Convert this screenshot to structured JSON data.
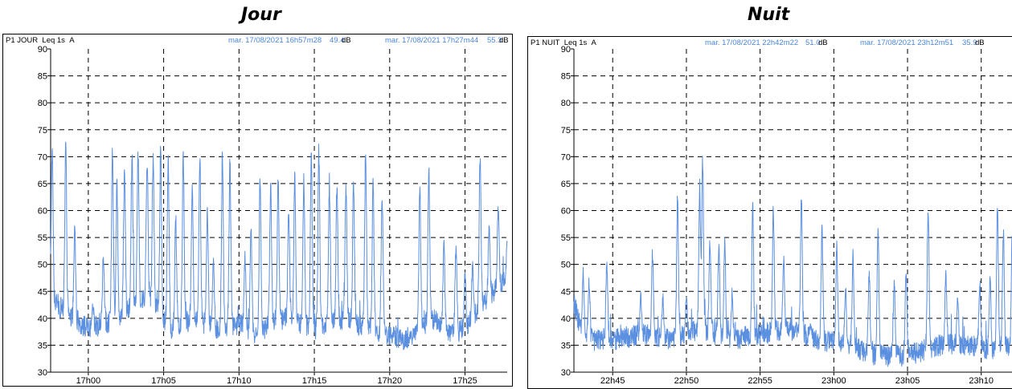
{
  "titles": {
    "jour": "Jour",
    "nuit": "Nuit"
  },
  "colors": {
    "series": "#5b8fe0",
    "header_blue": "#4a86d8",
    "grid": "#000000"
  },
  "chart_data": [
    {
      "type": "line",
      "panel": "jour",
      "label": "P1 JOUR",
      "measure": "Leq 1s",
      "weighting": "A",
      "cursor1": {
        "time": "mar. 17/08/2021 16h57m28",
        "value": "49.4",
        "unit": "dB"
      },
      "cursor2": {
        "time": "mar. 17/08/2021 17h27m44",
        "value": "55.3",
        "unit": "dB"
      },
      "ylim": [
        30,
        90
      ],
      "yticks": [
        30,
        35,
        40,
        45,
        50,
        55,
        60,
        65,
        70,
        75,
        80,
        85,
        90
      ],
      "xlim": [
        -2.5,
        27.8
      ],
      "xticks": [
        {
          "t": 0,
          "label": "17h00"
        },
        {
          "t": 5,
          "label": "17h05"
        },
        {
          "t": 10,
          "label": "17h10"
        },
        {
          "t": 15,
          "label": "17h15"
        },
        {
          "t": 20,
          "label": "17h20"
        },
        {
          "t": 25,
          "label": "17h25"
        }
      ],
      "grid": true,
      "baseline": [
        [
          -2.5,
          44
        ],
        [
          -1.5,
          41
        ],
        [
          0,
          38
        ],
        [
          2,
          40
        ],
        [
          4,
          44
        ],
        [
          5.5,
          38
        ],
        [
          7,
          40
        ],
        [
          8.5,
          38
        ],
        [
          10,
          39
        ],
        [
          11,
          37
        ],
        [
          13,
          40
        ],
        [
          15,
          38
        ],
        [
          17,
          40
        ],
        [
          18.5,
          38
        ],
        [
          20,
          37
        ],
        [
          21,
          36
        ],
        [
          22,
          38
        ],
        [
          23,
          40
        ],
        [
          24,
          37
        ],
        [
          25,
          38
        ],
        [
          26,
          42
        ],
        [
          27.8,
          48
        ]
      ],
      "peaks": [
        [
          -2.4,
          74
        ],
        [
          -1.5,
          74
        ],
        [
          -0.9,
          58
        ],
        [
          0.3,
          44
        ],
        [
          1.0,
          53
        ],
        [
          1.6,
          72
        ],
        [
          1.9,
          66
        ],
        [
          2.4,
          70
        ],
        [
          2.9,
          73
        ],
        [
          3.3,
          72
        ],
        [
          3.9,
          72
        ],
        [
          4.3,
          72
        ],
        [
          4.8,
          73
        ],
        [
          5.3,
          72
        ],
        [
          5.8,
          60
        ],
        [
          6.3,
          72
        ],
        [
          6.9,
          65
        ],
        [
          7.4,
          72
        ],
        [
          7.9,
          62
        ],
        [
          8.3,
          52
        ],
        [
          8.9,
          72
        ],
        [
          9.4,
          71
        ],
        [
          10.4,
          53
        ],
        [
          10.8,
          58
        ],
        [
          11.4,
          67
        ],
        [
          12.1,
          67
        ],
        [
          12.6,
          67
        ],
        [
          13.3,
          62
        ],
        [
          13.7,
          68
        ],
        [
          14.3,
          68
        ],
        [
          14.8,
          73
        ],
        [
          15.3,
          73
        ],
        [
          16.0,
          67
        ],
        [
          16.5,
          66
        ],
        [
          17.1,
          66
        ],
        [
          17.6,
          67
        ],
        [
          18.4,
          73
        ],
        [
          18.9,
          67
        ],
        [
          19.5,
          65
        ],
        [
          22.0,
          66
        ],
        [
          22.6,
          69
        ],
        [
          23.6,
          55
        ],
        [
          24.4,
          55
        ],
        [
          25.0,
          50
        ],
        [
          25.5,
          51
        ],
        [
          26.0,
          72
        ],
        [
          26.6,
          59
        ],
        [
          27.2,
          62
        ],
        [
          27.8,
          55
        ]
      ],
      "seed": 1234
    },
    {
      "type": "line",
      "panel": "nuit",
      "label": "P1 NUIT",
      "measure": "Leq 1s",
      "weighting": "A",
      "cursor1": {
        "time": "mar. 17/08/2021 22h42m22",
        "value": "51.0",
        "unit": "dB"
      },
      "cursor2": {
        "time": "mar. 17/08/2021 23h12m51",
        "value": "35.9",
        "unit": "dB"
      },
      "ylim": [
        30,
        90
      ],
      "yticks": [
        30,
        35,
        40,
        45,
        50,
        55,
        60,
        65,
        70,
        75,
        80,
        85,
        90
      ],
      "xlim": [
        42.37,
        72.85
      ],
      "xticks": [
        {
          "t": 45,
          "label": "22h45"
        },
        {
          "t": 50,
          "label": "22h50"
        },
        {
          "t": 55,
          "label": "22h55"
        },
        {
          "t": 60,
          "label": "23h00"
        },
        {
          "t": 65,
          "label": "23h05"
        },
        {
          "t": 70,
          "label": "23h10"
        }
      ],
      "grid": true,
      "baseline": [
        [
          42.37,
          43
        ],
        [
          43,
          36
        ],
        [
          45,
          36
        ],
        [
          47,
          37
        ],
        [
          49,
          36
        ],
        [
          51,
          38
        ],
        [
          53,
          36
        ],
        [
          55,
          37
        ],
        [
          57,
          38
        ],
        [
          59,
          36
        ],
        [
          61,
          35
        ],
        [
          63,
          33
        ],
        [
          65,
          33
        ],
        [
          67,
          35
        ],
        [
          69,
          35
        ],
        [
          71,
          34
        ],
        [
          72.85,
          36
        ]
      ],
      "peaks": [
        [
          43.0,
          50
        ],
        [
          43.4,
          48
        ],
        [
          44.6,
          52
        ],
        [
          46.9,
          45
        ],
        [
          47.7,
          54
        ],
        [
          48.4,
          45
        ],
        [
          49.4,
          64
        ],
        [
          50.0,
          45
        ],
        [
          50.9,
          66
        ],
        [
          51.1,
          71
        ],
        [
          51.6,
          56
        ],
        [
          52.2,
          55
        ],
        [
          52.6,
          56
        ],
        [
          53.1,
          46
        ],
        [
          54.5,
          62
        ],
        [
          55.9,
          62
        ],
        [
          56.6,
          53
        ],
        [
          57.8,
          65
        ],
        [
          58.4,
          40
        ],
        [
          59.2,
          58
        ],
        [
          60.2,
          55
        ],
        [
          60.8,
          47
        ],
        [
          61.3,
          53
        ],
        [
          62.4,
          50
        ],
        [
          63.0,
          58
        ],
        [
          64.1,
          48
        ],
        [
          64.9,
          50
        ],
        [
          66.4,
          63
        ],
        [
          67.6,
          50
        ],
        [
          68.4,
          45
        ],
        [
          69.9,
          48
        ],
        [
          70.6,
          49
        ],
        [
          71.1,
          63
        ],
        [
          71.5,
          58
        ],
        [
          72.1,
          57
        ],
        [
          72.6,
          50
        ]
      ],
      "seed": 98765
    }
  ]
}
